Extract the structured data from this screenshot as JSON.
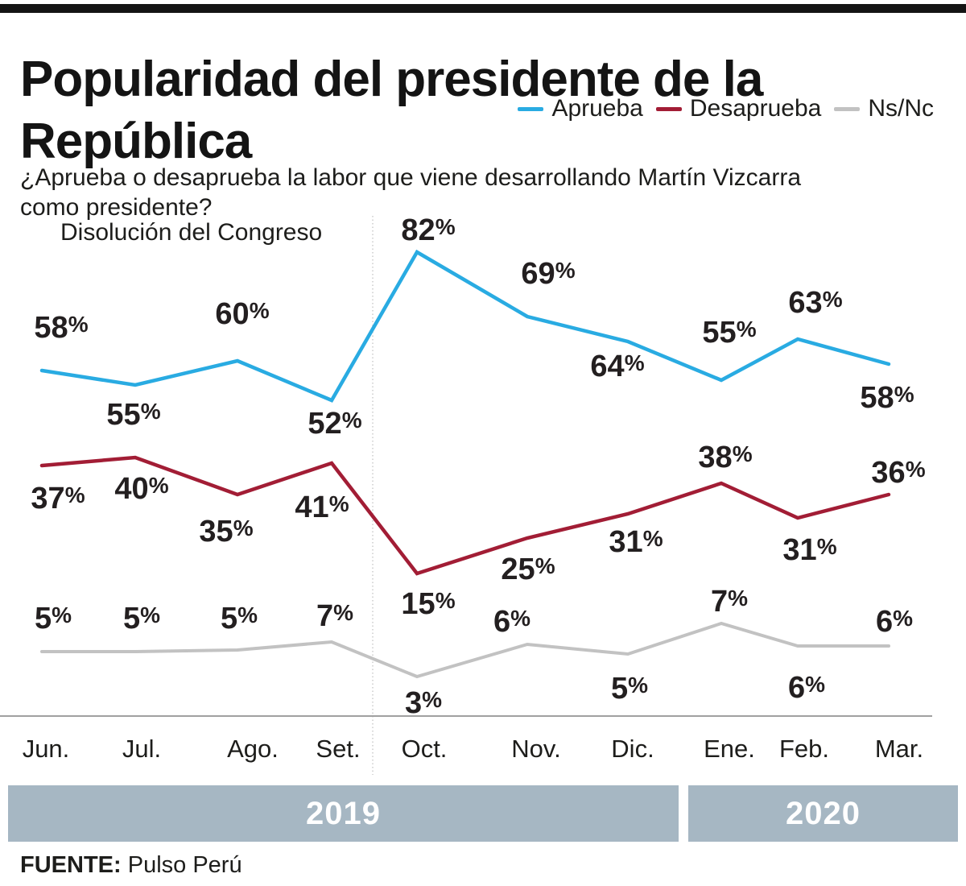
{
  "header": {
    "title_lines": [
      "Popularidad del presidente de la",
      "República"
    ],
    "subtitle_lines": [
      "¿Aprueba o desaprueba la labor que viene desarrollando Martín Vizcarra",
      "como presidente?"
    ]
  },
  "legend": [
    {
      "label": "Aprueba",
      "color": "#29abe2"
    },
    {
      "label": "Desaprueba",
      "color": "#a21d35"
    },
    {
      "label": "Ns/Nc",
      "color": "#c2c2c2"
    }
  ],
  "annotation": "Disolución del Congreso",
  "chart_data": {
    "type": "line",
    "categories": [
      "Jun.",
      "Jul.",
      "Ago.",
      "Set.",
      "Oct.",
      "Nov.",
      "Dic.",
      "Ene.",
      "Feb.",
      "Mar."
    ],
    "unit": "%",
    "series": [
      {
        "name": "Aprueba",
        "color": "#29abe2",
        "values": [
          58,
          55,
          60,
          52,
          82,
          69,
          64,
          55,
          63,
          58
        ]
      },
      {
        "name": "Desaprueba",
        "color": "#a21d35",
        "values": [
          37,
          40,
          35,
          41,
          15,
          25,
          31,
          38,
          31,
          36
        ]
      },
      {
        "name": "Ns/Nc",
        "color": "#c2c2c2",
        "values": [
          5,
          5,
          5,
          7,
          3,
          6,
          5,
          7,
          6,
          6
        ]
      }
    ],
    "event_line_between": [
      "Set.",
      "Oct."
    ],
    "grid": "off",
    "legend_position": "top-right",
    "years": [
      {
        "label": "2019",
        "months": [
          "Jun.",
          "Jul.",
          "Ago.",
          "Set.",
          "Oct.",
          "Nov.",
          "Dic."
        ]
      },
      {
        "label": "2020",
        "months": [
          "Ene.",
          "Feb.",
          "Mar."
        ]
      }
    ],
    "band_color": "#a6b7c3"
  },
  "source": {
    "label": "FUENTE:",
    "value": "Pulso Perú"
  }
}
